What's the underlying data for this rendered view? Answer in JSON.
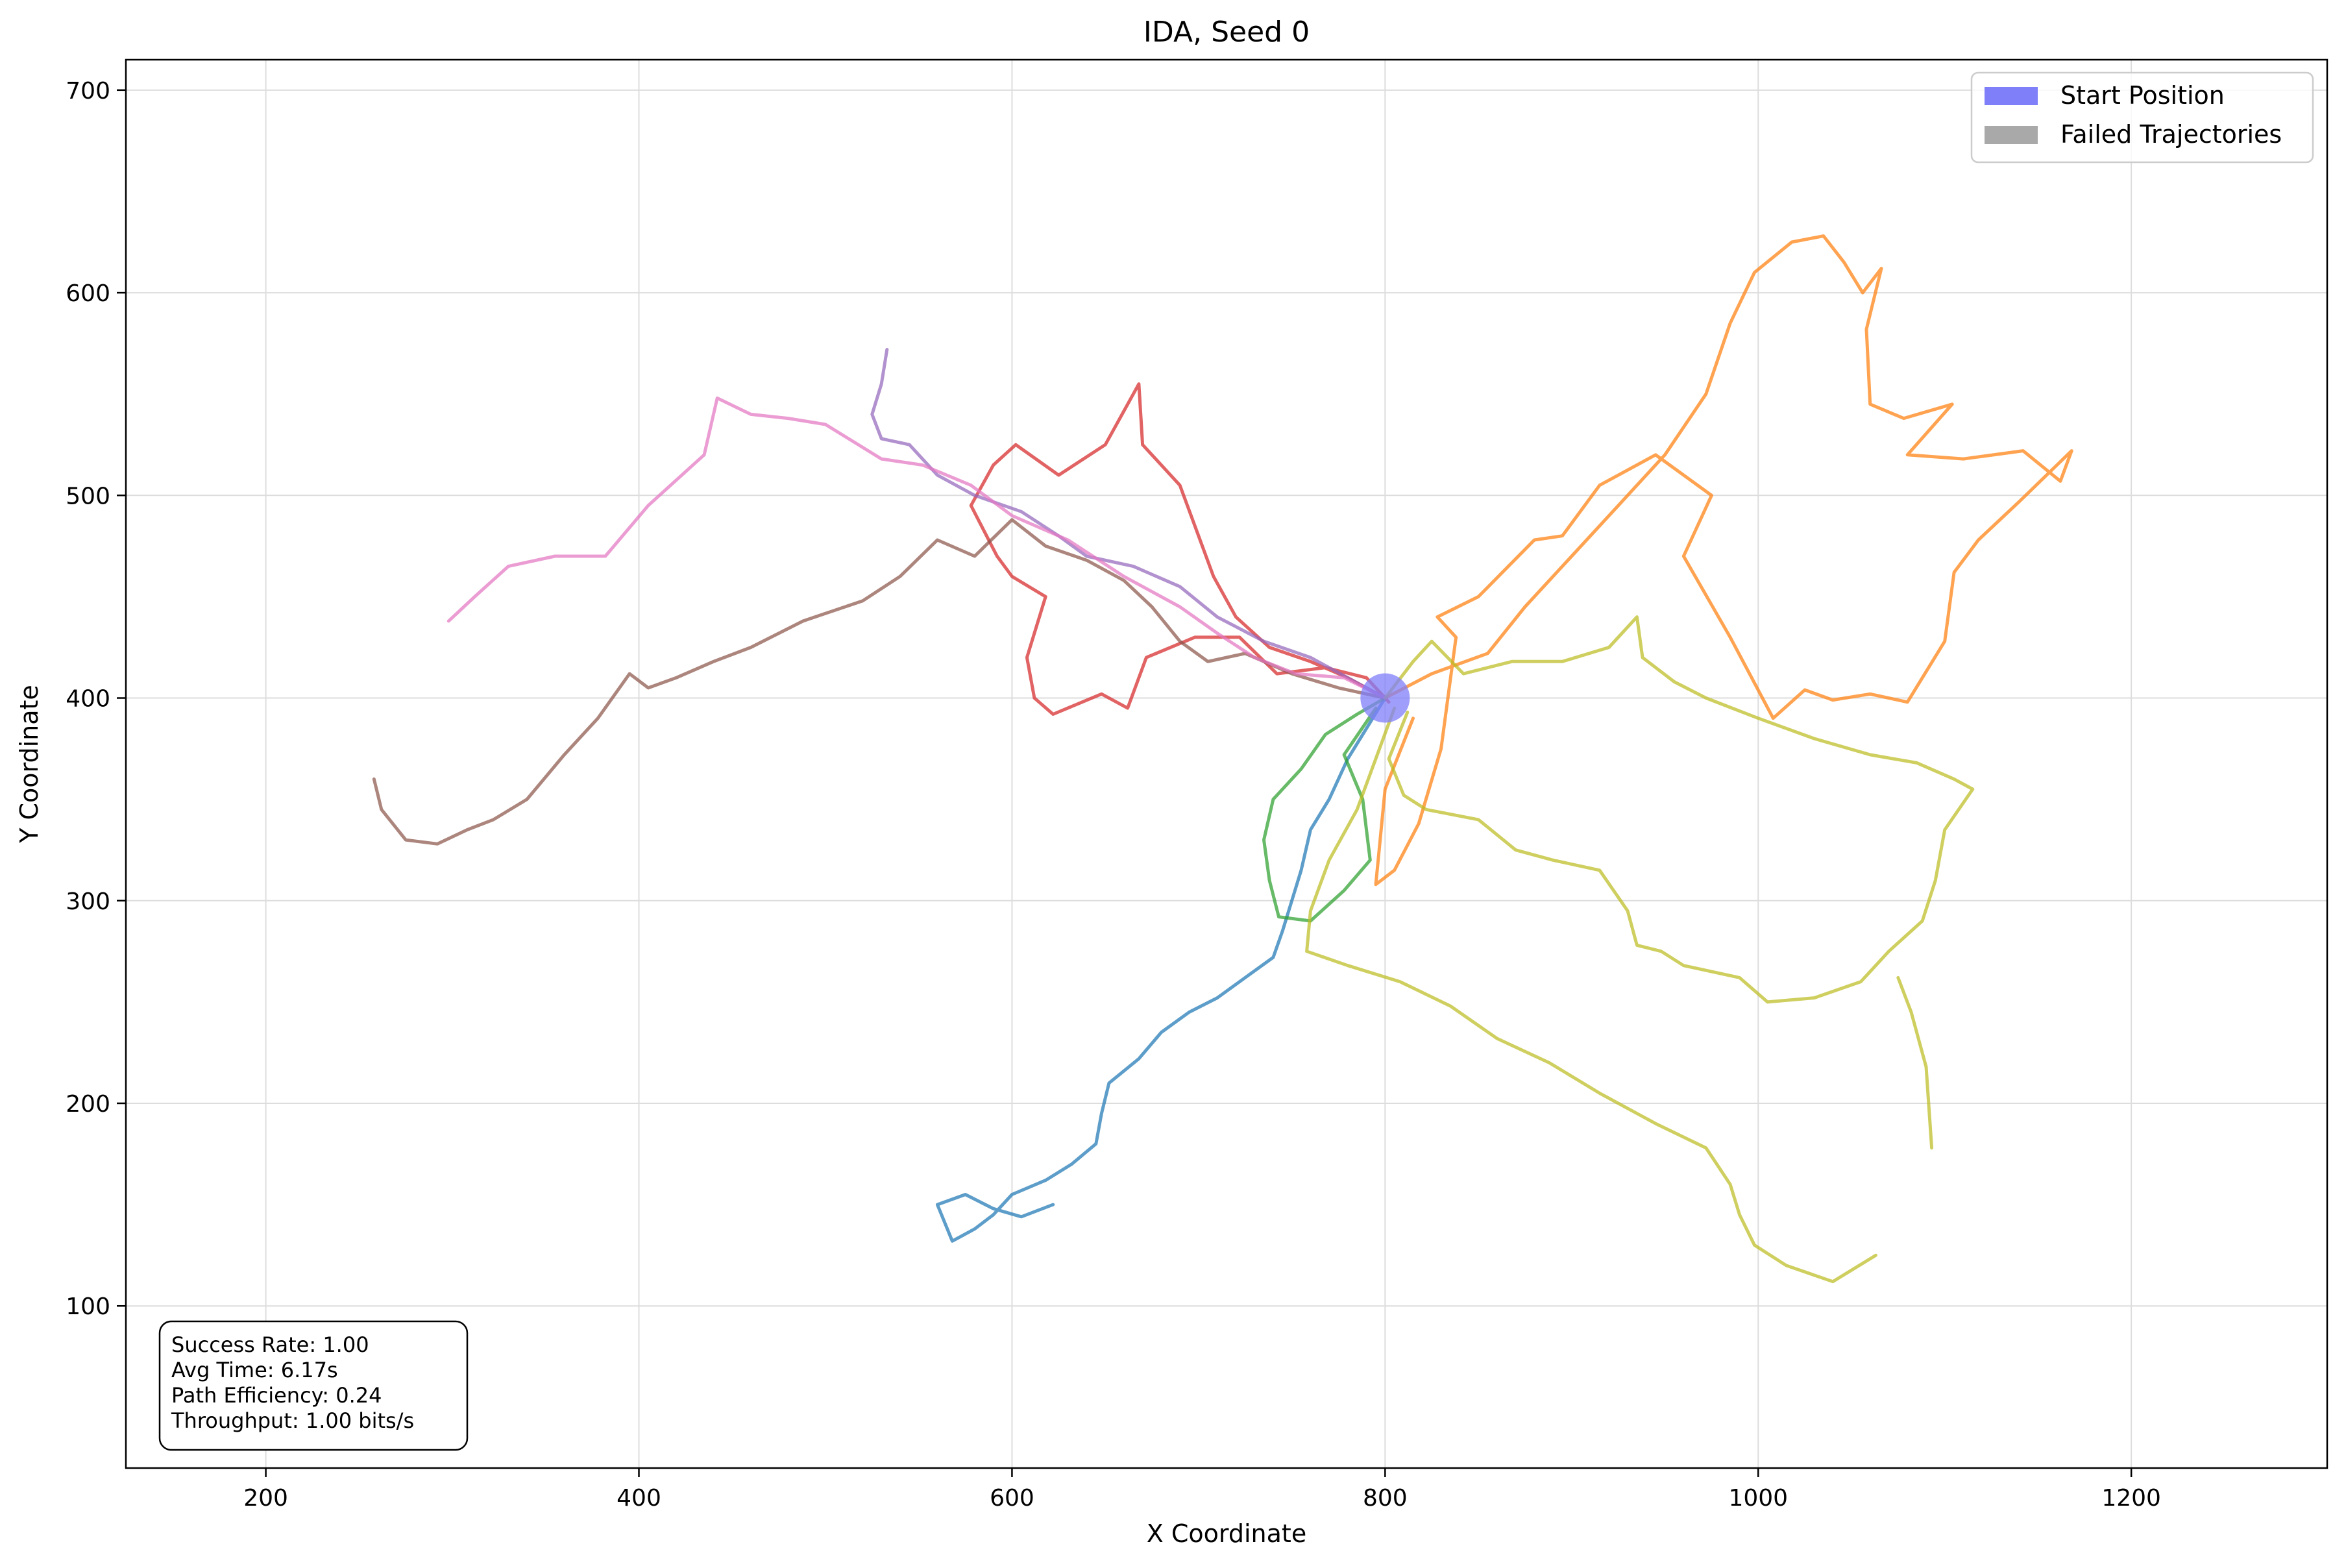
{
  "chart_data": {
    "type": "line",
    "title": "IDA, Seed 0",
    "xlabel": "X Coordinate",
    "ylabel": "Y Coordinate",
    "xlim": [
      125,
      1305
    ],
    "ylim": [
      20,
      715
    ],
    "xticks": [
      200,
      400,
      600,
      800,
      1000,
      1200
    ],
    "yticks": [
      100,
      200,
      300,
      400,
      500,
      600,
      700
    ],
    "grid": true,
    "legend_position": "top-right",
    "legend": [
      {
        "label": "Start Position",
        "color": "#7f7ff9"
      },
      {
        "label": "Failed Trajectories",
        "color": "#a9a9a9"
      }
    ],
    "start_position": {
      "x": 800,
      "y": 400
    },
    "stats": {
      "success_rate": "Success Rate: 1.00",
      "avg_time": "Avg Time: 6.17s",
      "path_efficiency": "Path Efficiency: 0.24",
      "throughput": "Throughput: 1.00 bits/s"
    },
    "series": [
      {
        "color": "#1f77b4",
        "points": [
          [
            800,
            400
          ],
          [
            790,
            385
          ],
          [
            780,
            370
          ],
          [
            770,
            350
          ],
          [
            760,
            335
          ],
          [
            755,
            315
          ],
          [
            750,
            300
          ],
          [
            745,
            285
          ],
          [
            740,
            272
          ],
          [
            725,
            262
          ],
          [
            710,
            252
          ],
          [
            695,
            245
          ],
          [
            680,
            235
          ],
          [
            668,
            222
          ],
          [
            652,
            210
          ],
          [
            648,
            195
          ],
          [
            645,
            180
          ],
          [
            632,
            170
          ],
          [
            618,
            162
          ],
          [
            600,
            155
          ],
          [
            590,
            145
          ],
          [
            580,
            138
          ],
          [
            568,
            132
          ],
          [
            560,
            150
          ],
          [
            575,
            155
          ],
          [
            590,
            148
          ],
          [
            605,
            144
          ],
          [
            622,
            150
          ]
        ]
      },
      {
        "color": "#ff7f0e",
        "points": [
          [
            800,
            400
          ],
          [
            825,
            412
          ],
          [
            855,
            422
          ],
          [
            875,
            445
          ],
          [
            900,
            470
          ],
          [
            925,
            495
          ],
          [
            950,
            520
          ],
          [
            972,
            550
          ],
          [
            985,
            585
          ],
          [
            998,
            610
          ],
          [
            1018,
            625
          ],
          [
            1035,
            628
          ],
          [
            1046,
            615
          ],
          [
            1056,
            600
          ],
          [
            1066,
            612
          ],
          [
            1058,
            582
          ],
          [
            1060,
            545
          ],
          [
            1078,
            538
          ],
          [
            1104,
            545
          ],
          [
            1080,
            520
          ],
          [
            1110,
            518
          ],
          [
            1142,
            522
          ],
          [
            1162,
            507
          ],
          [
            1168,
            522
          ],
          [
            1140,
            497
          ],
          [
            1118,
            478
          ],
          [
            1105,
            462
          ],
          [
            1100,
            428
          ],
          [
            1080,
            398
          ],
          [
            1060,
            402
          ],
          [
            1040,
            399
          ],
          [
            1025,
            404
          ],
          [
            1008,
            390
          ],
          [
            985,
            430
          ],
          [
            960,
            470
          ],
          [
            975,
            500
          ],
          [
            945,
            520
          ],
          [
            915,
            505
          ],
          [
            895,
            480
          ],
          [
            880,
            478
          ],
          [
            850,
            450
          ],
          [
            828,
            440
          ],
          [
            838,
            430
          ],
          [
            830,
            375
          ],
          [
            818,
            338
          ],
          [
            805,
            315
          ],
          [
            795,
            308
          ],
          [
            800,
            355
          ],
          [
            815,
            390
          ]
        ]
      },
      {
        "color": "#2ca02c",
        "points": [
          [
            800,
            400
          ],
          [
            785,
            392
          ],
          [
            768,
            382
          ],
          [
            755,
            365
          ],
          [
            740,
            350
          ],
          [
            735,
            330
          ],
          [
            738,
            310
          ],
          [
            743,
            292
          ],
          [
            760,
            290
          ],
          [
            778,
            305
          ],
          [
            792,
            320
          ],
          [
            788,
            350
          ],
          [
            778,
            372
          ],
          [
            795,
            395
          ]
        ]
      },
      {
        "color": "#d62728",
        "points": [
          [
            800,
            400
          ],
          [
            780,
            410
          ],
          [
            760,
            418
          ],
          [
            738,
            425
          ],
          [
            720,
            440
          ],
          [
            708,
            460
          ],
          [
            700,
            480
          ],
          [
            690,
            505
          ],
          [
            670,
            525
          ],
          [
            668,
            555
          ],
          [
            650,
            525
          ],
          [
            625,
            510
          ],
          [
            602,
            525
          ],
          [
            590,
            515
          ],
          [
            578,
            495
          ],
          [
            592,
            470
          ],
          [
            600,
            460
          ],
          [
            618,
            450
          ],
          [
            608,
            420
          ],
          [
            612,
            400
          ],
          [
            622,
            392
          ],
          [
            648,
            402
          ],
          [
            662,
            395
          ],
          [
            672,
            420
          ],
          [
            698,
            430
          ],
          [
            722,
            430
          ],
          [
            742,
            412
          ],
          [
            768,
            415
          ],
          [
            790,
            410
          ],
          [
            802,
            398
          ]
        ]
      },
      {
        "color": "#9467bd",
        "points": [
          [
            800,
            400
          ],
          [
            780,
            410
          ],
          [
            760,
            420
          ],
          [
            735,
            428
          ],
          [
            710,
            440
          ],
          [
            690,
            455
          ],
          [
            665,
            465
          ],
          [
            640,
            470
          ],
          [
            625,
            480
          ],
          [
            605,
            492
          ],
          [
            580,
            500
          ],
          [
            560,
            510
          ],
          [
            545,
            525
          ],
          [
            530,
            528
          ],
          [
            525,
            540
          ],
          [
            530,
            555
          ],
          [
            533,
            572
          ]
        ]
      },
      {
        "color": "#8c564b",
        "points": [
          [
            800,
            400
          ],
          [
            775,
            405
          ],
          [
            750,
            412
          ],
          [
            725,
            422
          ],
          [
            705,
            418
          ],
          [
            690,
            428
          ],
          [
            675,
            445
          ],
          [
            660,
            458
          ],
          [
            640,
            468
          ],
          [
            618,
            475
          ],
          [
            600,
            488
          ],
          [
            580,
            470
          ],
          [
            560,
            478
          ],
          [
            540,
            460
          ],
          [
            520,
            448
          ],
          [
            488,
            438
          ],
          [
            460,
            425
          ],
          [
            440,
            418
          ],
          [
            420,
            410
          ],
          [
            405,
            405
          ],
          [
            395,
            412
          ],
          [
            378,
            390
          ],
          [
            360,
            372
          ],
          [
            340,
            350
          ],
          [
            322,
            340
          ],
          [
            308,
            335
          ],
          [
            292,
            328
          ],
          [
            275,
            330
          ],
          [
            262,
            345
          ],
          [
            258,
            360
          ]
        ]
      },
      {
        "color": "#e377c2",
        "points": [
          [
            800,
            400
          ],
          [
            778,
            410
          ],
          [
            752,
            412
          ],
          [
            730,
            420
          ],
          [
            710,
            432
          ],
          [
            690,
            445
          ],
          [
            660,
            460
          ],
          [
            630,
            478
          ],
          [
            600,
            490
          ],
          [
            578,
            505
          ],
          [
            552,
            515
          ],
          [
            530,
            518
          ],
          [
            500,
            535
          ],
          [
            480,
            538
          ],
          [
            460,
            540
          ],
          [
            442,
            548
          ],
          [
            435,
            520
          ],
          [
            405,
            495
          ],
          [
            382,
            470
          ],
          [
            355,
            470
          ],
          [
            330,
            465
          ],
          [
            312,
            450
          ],
          [
            298,
            438
          ]
        ]
      },
      {
        "color": "#bcbd22",
        "points": [
          [
            800,
            400
          ],
          [
            815,
            418
          ],
          [
            825,
            428
          ],
          [
            842,
            412
          ],
          [
            868,
            418
          ],
          [
            895,
            418
          ],
          [
            920,
            425
          ],
          [
            935,
            440
          ],
          [
            938,
            420
          ],
          [
            955,
            408
          ],
          [
            972,
            400
          ],
          [
            1000,
            390
          ],
          [
            1030,
            380
          ],
          [
            1060,
            372
          ],
          [
            1085,
            368
          ],
          [
            1105,
            360
          ],
          [
            1115,
            355
          ],
          [
            1100,
            335
          ],
          [
            1095,
            310
          ],
          [
            1088,
            290
          ],
          [
            1070,
            275
          ],
          [
            1055,
            260
          ],
          [
            1030,
            252
          ],
          [
            1005,
            250
          ],
          [
            990,
            262
          ],
          [
            960,
            268
          ],
          [
            948,
            275
          ],
          [
            935,
            278
          ],
          [
            930,
            295
          ],
          [
            915,
            315
          ],
          [
            890,
            320
          ],
          [
            870,
            325
          ],
          [
            850,
            340
          ],
          [
            822,
            345
          ],
          [
            810,
            352
          ],
          [
            802,
            370
          ],
          [
            812,
            393
          ]
        ]
      },
      {
        "color": "#bcbd22",
        "points": [
          [
            805,
            395
          ],
          [
            785,
            345
          ],
          [
            770,
            320
          ],
          [
            760,
            295
          ],
          [
            758,
            275
          ],
          [
            780,
            268
          ],
          [
            808,
            260
          ],
          [
            835,
            248
          ],
          [
            860,
            232
          ],
          [
            888,
            220
          ],
          [
            915,
            205
          ],
          [
            945,
            190
          ],
          [
            972,
            178
          ],
          [
            985,
            160
          ],
          [
            990,
            145
          ],
          [
            998,
            130
          ],
          [
            1015,
            120
          ],
          [
            1040,
            112
          ],
          [
            1063,
            125
          ]
        ]
      },
      {
        "color": "#bcbd22",
        "points": [
          [
            1075,
            262
          ],
          [
            1082,
            245
          ],
          [
            1090,
            218
          ],
          [
            1093,
            178
          ]
        ]
      }
    ]
  }
}
